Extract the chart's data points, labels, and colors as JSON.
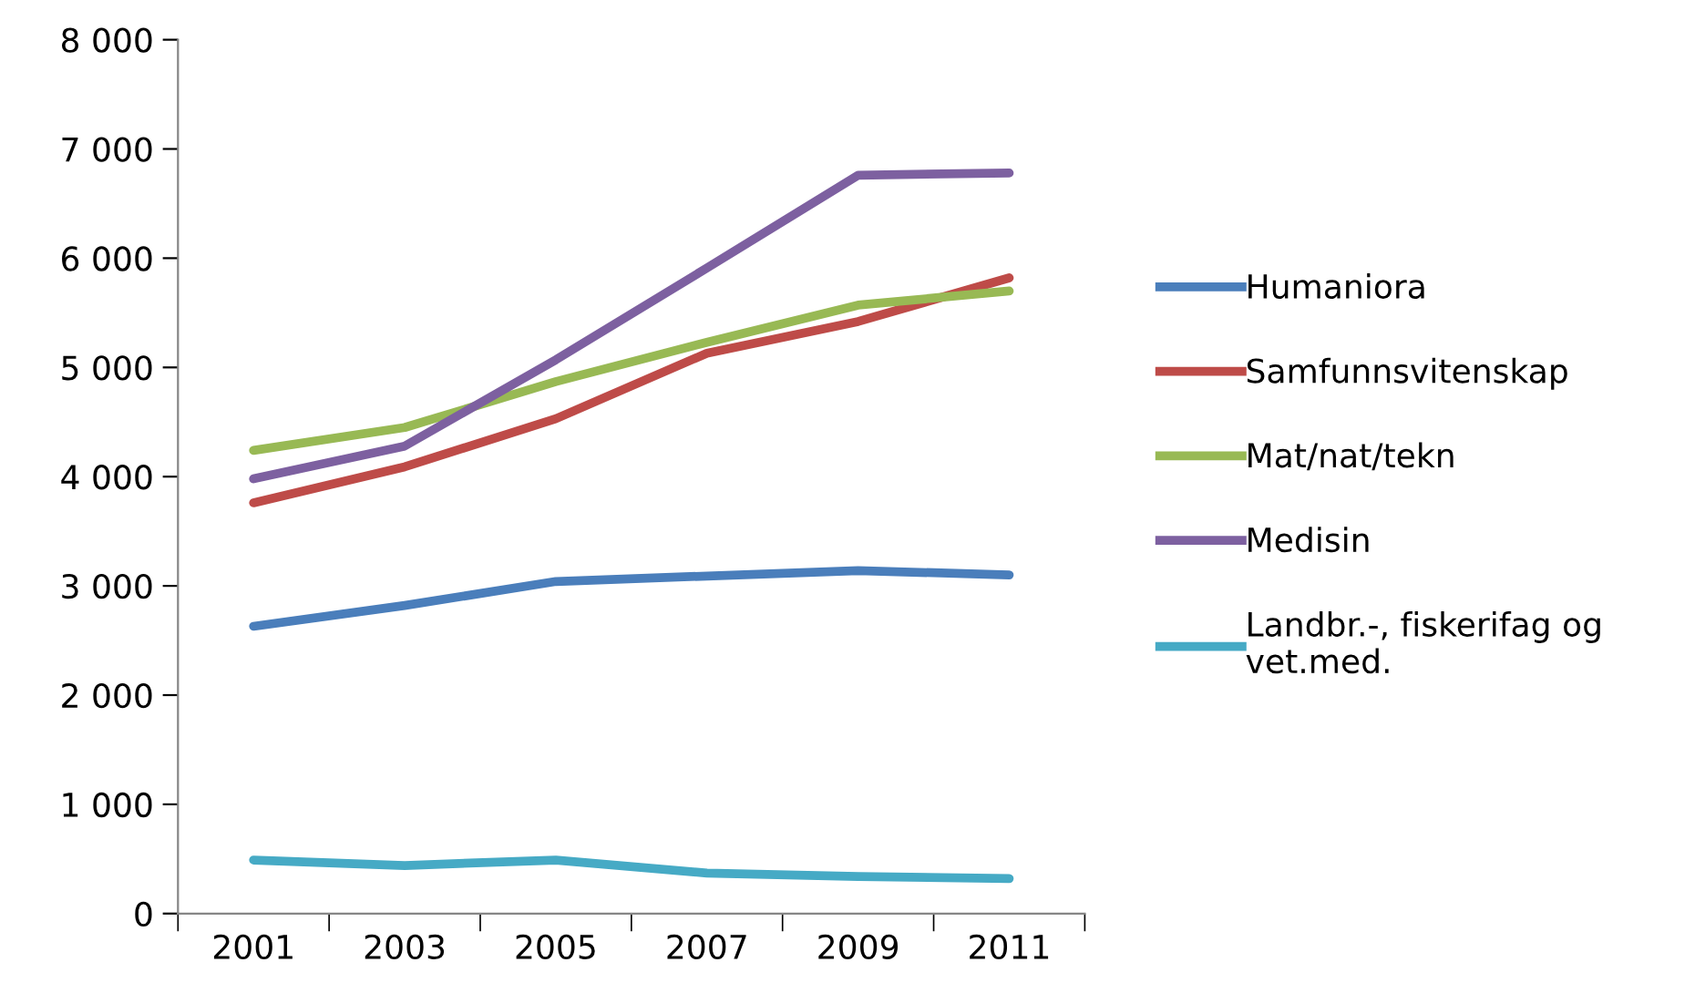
{
  "chart_data": {
    "type": "line",
    "categories": [
      "2001",
      "2003",
      "2005",
      "2007",
      "2009",
      "2011"
    ],
    "series": [
      {
        "name": "Humaniora",
        "color": "#4a7ebb",
        "values": [
          2630,
          2820,
          3040,
          3090,
          3140,
          3100
        ]
      },
      {
        "name": "Samfunnsvitenskap",
        "color": "#be4b48",
        "values": [
          3760,
          4090,
          4530,
          5130,
          5420,
          5820
        ]
      },
      {
        "name": "Mat/nat/tekn",
        "color": "#98b954",
        "values": [
          4240,
          4450,
          4870,
          5230,
          5570,
          5700
        ]
      },
      {
        "name": "Medisin",
        "color": "#7d60a0",
        "values": [
          3980,
          4280,
          5070,
          5910,
          6760,
          6780
        ]
      },
      {
        "name": "Landbr.-, fiskerifag og vet.med.",
        "color": "#46aac5",
        "values": [
          490,
          440,
          490,
          370,
          340,
          320
        ]
      }
    ],
    "ylim": [
      0,
      8000
    ],
    "yticks": [
      {
        "value": 0,
        "label": "0"
      },
      {
        "value": 1000,
        "label": "1 000"
      },
      {
        "value": 2000,
        "label": "2 000"
      },
      {
        "value": 3000,
        "label": "3 000"
      },
      {
        "value": 4000,
        "label": "4 000"
      },
      {
        "value": 5000,
        "label": "5 000"
      },
      {
        "value": 6000,
        "label": "6 000"
      },
      {
        "value": 7000,
        "label": "7 000"
      },
      {
        "value": 8000,
        "label": "8 000"
      }
    ],
    "grid": false,
    "legend": "right",
    "marker": "none",
    "line_style": "solid"
  }
}
